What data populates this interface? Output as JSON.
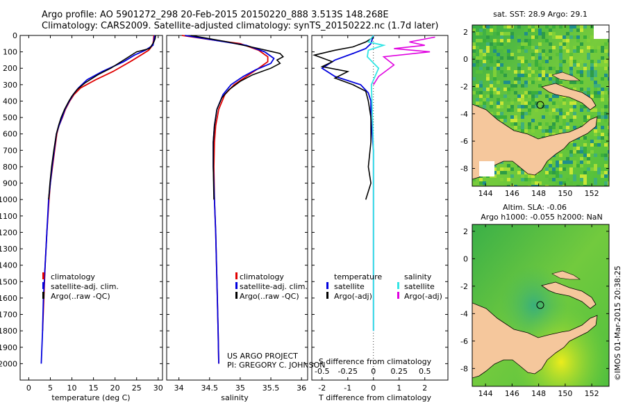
{
  "header": {
    "line1": "Argo profile: AO 5901272_298 20-Feb-2015 20150220_888 3.513S 148.268E",
    "line2": "Climatology: CARS2009. Satellite-adjusted climatology: synTS_20150222.nc (1.7d later)"
  },
  "colors": {
    "climatology": "#e00000",
    "satellite": "#0000dd",
    "argo": "#000000",
    "sat_salinity": "#33e5e5",
    "argo_adj_salinity": "#e000e0",
    "land": "#f5c79c"
  },
  "chart_data": [
    {
      "type": "line",
      "panel": "temperature",
      "xlabel": "temperature (deg C)",
      "ylabel": "",
      "xlim": [
        -2,
        31
      ],
      "ylim": [
        2100,
        0
      ],
      "xticks": [
        0,
        5,
        10,
        15,
        20,
        25,
        30
      ],
      "yticks": [
        0,
        100,
        200,
        300,
        400,
        500,
        600,
        700,
        800,
        900,
        1000,
        1100,
        1200,
        1300,
        1400,
        1500,
        1600,
        1700,
        1800,
        1900,
        2000
      ],
      "legend": [
        "climatology",
        "satellite-adj. clim.",
        "Argo(..raw -QC)"
      ],
      "series": [
        {
          "name": "climatology",
          "points": [
            [
              29.0,
              0
            ],
            [
              28.9,
              30
            ],
            [
              28.7,
              60
            ],
            [
              27.8,
              90
            ],
            [
              26.0,
              120
            ],
            [
              23.5,
              160
            ],
            [
              19.5,
              220
            ],
            [
              15.5,
              270
            ],
            [
              12.0,
              320
            ],
            [
              10.5,
              360
            ],
            [
              9.5,
              400
            ],
            [
              8.5,
              450
            ],
            [
              7.8,
              500
            ],
            [
              7.0,
              550
            ],
            [
              6.5,
              600
            ],
            [
              6.0,
              700
            ],
            [
              5.5,
              800
            ],
            [
              5.0,
              900
            ],
            [
              4.7,
              1000
            ],
            [
              4.2,
              1200
            ],
            [
              3.8,
              1400
            ],
            [
              3.5,
              1600
            ],
            [
              3.2,
              1800
            ]
          ]
        },
        {
          "name": "satellite",
          "points": [
            [
              29.2,
              0
            ],
            [
              29.0,
              30
            ],
            [
              28.8,
              60
            ],
            [
              27.0,
              90
            ],
            [
              24.5,
              120
            ],
            [
              22.0,
              160
            ],
            [
              17.0,
              220
            ],
            [
              13.5,
              270
            ],
            [
              11.5,
              320
            ],
            [
              10.3,
              360
            ],
            [
              9.4,
              400
            ],
            [
              8.4,
              450
            ],
            [
              7.7,
              500
            ],
            [
              7.0,
              550
            ],
            [
              6.4,
              600
            ],
            [
              5.9,
              700
            ],
            [
              5.4,
              800
            ],
            [
              5.0,
              900
            ],
            [
              4.6,
              1000
            ],
            [
              4.2,
              1200
            ],
            [
              3.8,
              1400
            ],
            [
              3.4,
              1600
            ],
            [
              3.2,
              1800
            ],
            [
              2.9,
              2000
            ]
          ]
        },
        {
          "name": "argo",
          "points": [
            [
              29.4,
              0
            ],
            [
              29.3,
              20
            ],
            [
              29.0,
              40
            ],
            [
              28.5,
              60
            ],
            [
              28.0,
              80
            ],
            [
              25.0,
              100
            ],
            [
              22.0,
              150
            ],
            [
              19.0,
              200
            ],
            [
              16.0,
              240
            ],
            [
              13.0,
              290
            ],
            [
              11.2,
              330
            ],
            [
              10.0,
              370
            ],
            [
              9.3,
              400
            ],
            [
              8.3,
              450
            ],
            [
              7.5,
              500
            ],
            [
              6.9,
              550
            ],
            [
              6.4,
              600
            ],
            [
              5.8,
              700
            ],
            [
              5.3,
              800
            ],
            [
              4.9,
              900
            ],
            [
              4.6,
              1000
            ]
          ]
        }
      ]
    },
    {
      "type": "line",
      "panel": "salinity",
      "xlabel": "salinity",
      "ylabel": "",
      "xlim": [
        33.8,
        36.1
      ],
      "ylim": [
        2100,
        0
      ],
      "xticks": [
        34,
        34.5,
        35,
        35.5,
        36
      ],
      "xticklabels": [
        "34",
        "34.5",
        "35",
        "35.5",
        "36"
      ],
      "legend": [
        "climatology",
        "satellite-adj. clim.",
        "Argo(..raw -QC)"
      ],
      "annotation": [
        "US ARGO PROJECT",
        "PI: GREGORY C. JOHNSON"
      ],
      "series": [
        {
          "name": "climatology",
          "points": [
            [
              34.05,
              0
            ],
            [
              34.5,
              25
            ],
            [
              35.0,
              50
            ],
            [
              35.3,
              90
            ],
            [
              35.45,
              130
            ],
            [
              35.45,
              160
            ],
            [
              35.3,
              200
            ],
            [
              35.1,
              250
            ],
            [
              34.9,
              300
            ],
            [
              34.75,
              360
            ],
            [
              34.65,
              450
            ],
            [
              34.6,
              550
            ],
            [
              34.58,
              650
            ],
            [
              34.57,
              800
            ],
            [
              34.58,
              1000
            ],
            [
              34.6,
              1200
            ],
            [
              34.62,
              1500
            ],
            [
              34.64,
              1800
            ],
            [
              34.65,
              2000
            ]
          ]
        },
        {
          "name": "satellite",
          "points": [
            [
              34.1,
              0
            ],
            [
              34.6,
              30
            ],
            [
              35.1,
              60
            ],
            [
              35.4,
              100
            ],
            [
              35.55,
              140
            ],
            [
              35.5,
              170
            ],
            [
              35.25,
              210
            ],
            [
              35.05,
              250
            ],
            [
              34.85,
              300
            ],
            [
              34.72,
              360
            ],
            [
              34.62,
              450
            ],
            [
              34.58,
              550
            ],
            [
              34.56,
              650
            ],
            [
              34.56,
              800
            ],
            [
              34.58,
              1000
            ],
            [
              34.6,
              1200
            ],
            [
              34.62,
              1500
            ],
            [
              34.64,
              1800
            ],
            [
              34.65,
              2000
            ]
          ]
        },
        {
          "name": "argo",
          "points": [
            [
              34.2,
              0
            ],
            [
              34.8,
              40
            ],
            [
              35.3,
              80
            ],
            [
              35.65,
              110
            ],
            [
              35.7,
              130
            ],
            [
              35.6,
              150
            ],
            [
              35.65,
              170
            ],
            [
              35.5,
              200
            ],
            [
              35.2,
              240
            ],
            [
              35.0,
              280
            ],
            [
              34.82,
              330
            ],
            [
              34.7,
              380
            ],
            [
              34.62,
              450
            ],
            [
              34.58,
              550
            ],
            [
              34.56,
              650
            ],
            [
              34.56,
              800
            ],
            [
              34.57,
              1000
            ]
          ]
        }
      ]
    },
    {
      "type": "line",
      "panel": "differences",
      "xlabel": "T difference from climatology",
      "xlabel_top": "S difference from climatology",
      "xlim": [
        -2.4,
        2.9
      ],
      "ylim": [
        2100,
        0
      ],
      "xticks": [
        -2,
        -1,
        0,
        1,
        2
      ],
      "sticks": [
        -0.5,
        -0.25,
        0,
        0.25,
        0.5
      ],
      "sticklabels": [
        "-0.5",
        "-0.25",
        "0",
        "0.25",
        "0.5"
      ],
      "legend_headers": [
        "temperature",
        "salinity"
      ],
      "legend": [
        "satellite",
        "Argo(-adj)",
        "satellite",
        "Argo(-adj)"
      ],
      "series": [
        {
          "name": "T satellite",
          "points": [
            [
              0,
              0
            ],
            [
              -0.1,
              50
            ],
            [
              -0.3,
              80
            ],
            [
              -0.8,
              110
            ],
            [
              -1.5,
              150
            ],
            [
              -2.0,
              200
            ],
            [
              -1.5,
              250
            ],
            [
              -0.5,
              300
            ],
            [
              -0.2,
              350
            ],
            [
              -0.1,
              400
            ],
            [
              -0.1,
              500
            ],
            [
              0,
              700
            ],
            [
              0,
              1000
            ],
            [
              0,
              1200
            ],
            [
              0,
              1500
            ],
            [
              0,
              1800
            ]
          ]
        },
        {
          "name": "T argo",
          "points": [
            [
              0,
              10
            ],
            [
              -0.3,
              40
            ],
            [
              -0.8,
              70
            ],
            [
              -1.5,
              90
            ],
            [
              -2.3,
              120
            ],
            [
              -1.6,
              160
            ],
            [
              -2.0,
              190
            ],
            [
              -1.0,
              220
            ],
            [
              -1.5,
              260
            ],
            [
              -0.8,
              300
            ],
            [
              -0.3,
              340
            ],
            [
              -0.2,
              400
            ],
            [
              -0.1,
              500
            ],
            [
              -0.1,
              650
            ],
            [
              -0.2,
              800
            ],
            [
              -0.1,
              900
            ],
            [
              -0.3,
              1000
            ]
          ]
        },
        {
          "name": "S satellite",
          "points": [
            [
              0,
              0
            ],
            [
              -0.05,
              40
            ],
            [
              0.1,
              60
            ],
            [
              -0.05,
              90
            ],
            [
              -0.06,
              130
            ],
            [
              0.05,
              200
            ],
            [
              -0.02,
              300
            ],
            [
              -0.01,
              500
            ],
            [
              0,
              700
            ],
            [
              0,
              1000
            ],
            [
              0,
              1500
            ],
            [
              0,
              1800
            ]
          ]
        },
        {
          "name": "S argo",
          "points": [
            [
              0.6,
              10
            ],
            [
              0.35,
              40
            ],
            [
              0.5,
              60
            ],
            [
              0.2,
              80
            ],
            [
              0.55,
              100
            ],
            [
              0.1,
              130
            ],
            [
              0.2,
              180
            ],
            [
              0.05,
              250
            ],
            [
              0,
              300
            ]
          ]
        }
      ]
    },
    {
      "type": "heatmap",
      "panel": "sst_map",
      "title": "sat. SST: 28.9 Argo: 29.1",
      "xticks": [
        144,
        146,
        148,
        150,
        152
      ],
      "yticks": [
        2,
        0,
        -2,
        -4,
        -6,
        -8
      ],
      "xlim": [
        143,
        153.3
      ],
      "ylim": [
        -9.3,
        2.5
      ]
    },
    {
      "type": "heatmap",
      "panel": "sla_map",
      "title1": "Altim. SLA: -0.06",
      "title2": "Argo h1000: -0.055 h2000: NaN",
      "xticks": [
        144,
        146,
        148,
        150,
        152
      ],
      "yticks": [
        2,
        0,
        -2,
        -4,
        -6,
        -8
      ],
      "xlim": [
        143,
        153.3
      ],
      "ylim": [
        -9.3,
        2.5
      ]
    }
  ],
  "credit": "©IMOS 01-Mar-2015 20:38:25"
}
